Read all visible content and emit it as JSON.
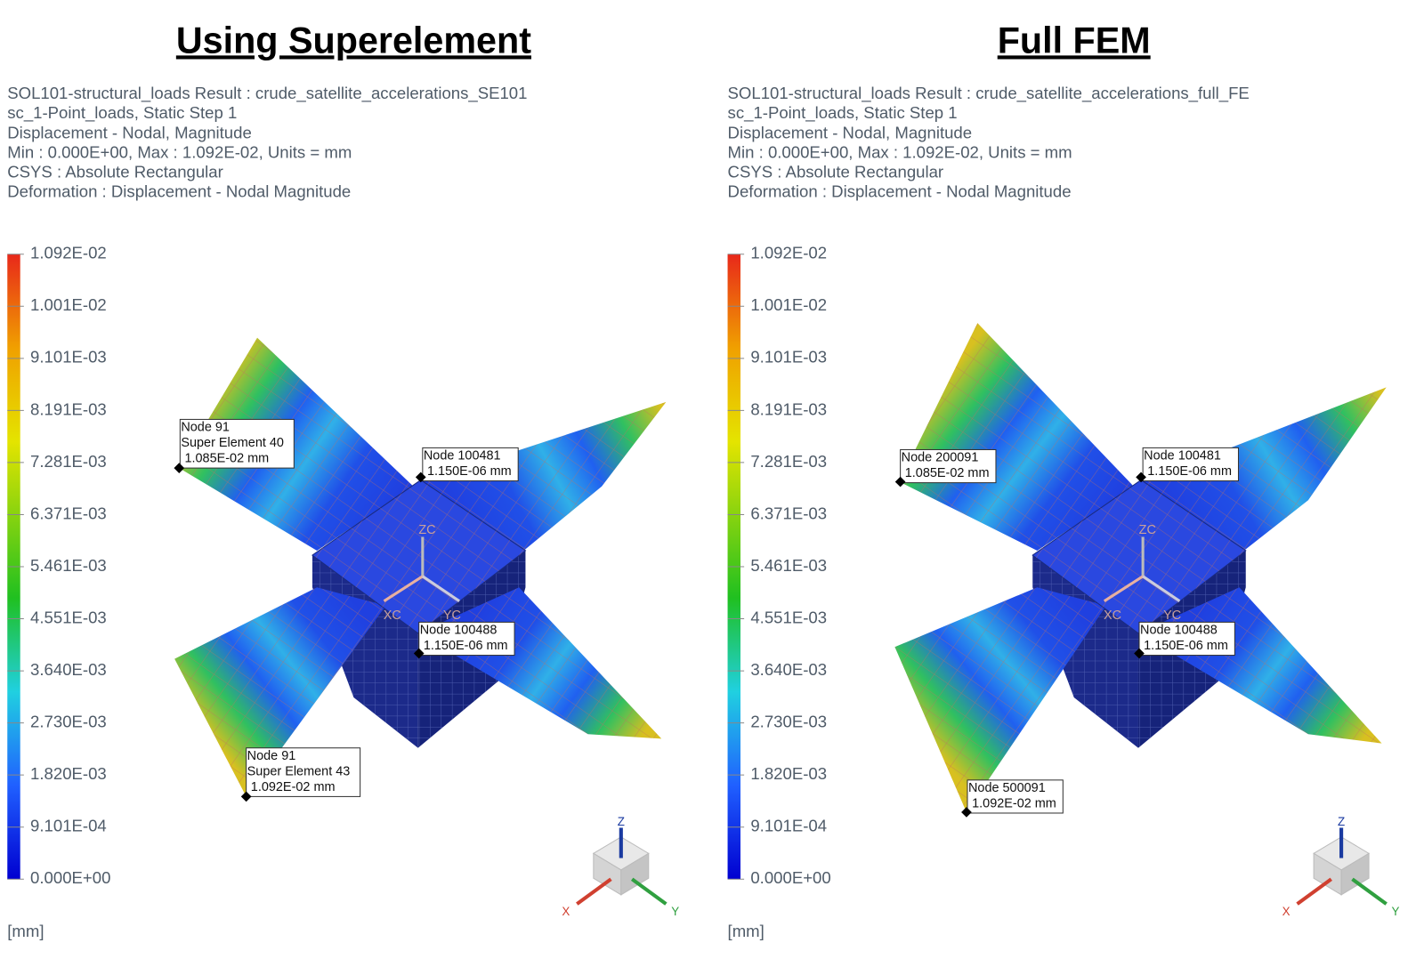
{
  "panels": [
    {
      "title": "Using Superelement",
      "info_lines": [
        "SOL101-structural_loads Result : crude_satellite_accelerations_SE101",
        "sc_1-Point_loads, Static Step 1",
        "Displacement - Nodal, Magnitude",
        "Min : 0.000E+00, Max : 1.092E-02, Units = mm",
        "CSYS : Absolute Rectangular",
        "Deformation : Displacement - Nodal Magnitude"
      ],
      "legend_labels": [
        "1.092E-02",
        "1.001E-02",
        "9.101E-03",
        "8.191E-03",
        "7.281E-03",
        "6.371E-03",
        "5.461E-03",
        "4.551E-03",
        "3.640E-03",
        "2.730E-03",
        "1.820E-03",
        "9.101E-04",
        "0.000E+00"
      ],
      "unit": "[mm]",
      "callouts": [
        {
          "lines": [
            "Node 91",
            "Super Element 40",
            "1.085E-02 mm"
          ]
        },
        {
          "lines": [
            "Node 100481",
            "1.150E-06 mm"
          ]
        },
        {
          "lines": [
            "Node 100488",
            "1.150E-06 mm"
          ]
        },
        {
          "lines": [
            "Node 91",
            "Super Element 43",
            "1.092E-02 mm"
          ]
        }
      ],
      "csys_labels": [
        "XC",
        "YC",
        "ZC"
      ],
      "triad": {
        "z": "Z",
        "x": "X",
        "y": "Y"
      }
    },
    {
      "title": "Full FEM",
      "info_lines": [
        "SOL101-structural_loads Result : crude_satellite_accelerations_full_FE",
        "sc_1-Point_loads, Static Step 1",
        "Displacement - Nodal, Magnitude",
        "Min : 0.000E+00, Max : 1.092E-02, Units = mm",
        "CSYS : Absolute Rectangular",
        "Deformation : Displacement - Nodal Magnitude"
      ],
      "legend_labels": [
        "1.092E-02",
        "1.001E-02",
        "9.101E-03",
        "8.191E-03",
        "7.281E-03",
        "6.371E-03",
        "5.461E-03",
        "4.551E-03",
        "3.640E-03",
        "2.730E-03",
        "1.820E-03",
        "9.101E-04",
        "0.000E+00"
      ],
      "unit": "[mm]",
      "callouts": [
        {
          "lines": [
            "Node 200091",
            "1.085E-02 mm"
          ]
        },
        {
          "lines": [
            "Node 100481",
            "1.150E-06 mm"
          ]
        },
        {
          "lines": [
            "Node 100488",
            "1.150E-06 mm"
          ]
        },
        {
          "lines": [
            "Node 500091",
            "1.092E-02 mm"
          ]
        }
      ],
      "csys_labels": [
        "XC",
        "YC",
        "ZC"
      ],
      "triad": {
        "z": "Z",
        "x": "X",
        "y": "Y"
      }
    }
  ]
}
